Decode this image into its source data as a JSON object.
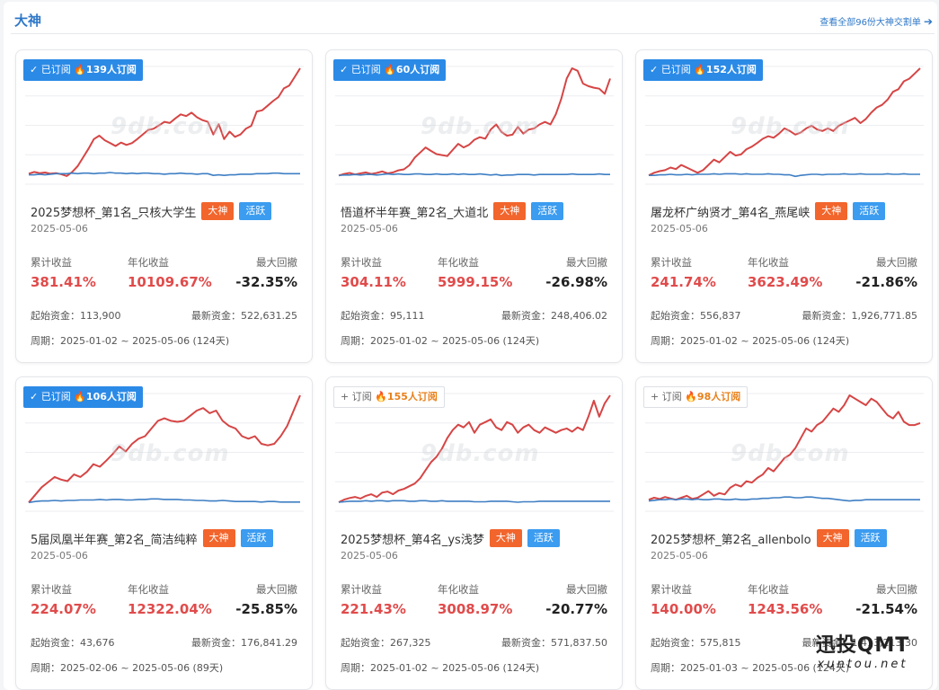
{
  "header": {
    "title": "大神",
    "view_all": "查看全部96份大神交割单"
  },
  "watermark_text": "9db.com",
  "labels": {
    "cum_return": "累计收益",
    "annual_return": "年化收益",
    "max_drawdown": "最大回撤",
    "start_fund": "起始资金：",
    "latest_fund": "最新资金：",
    "period": "周期："
  },
  "colors": {
    "accent": "#2b8ae6",
    "profit_line": "#d64545",
    "benchmark_line": "#3f7fc4",
    "tag_hot": "#f2652c",
    "tag_active": "#3b9cf0"
  },
  "cards": [
    {
      "subscribed": true,
      "sub_label": "✓ 已订阅",
      "sub_count": "139人订阅",
      "title": "2025梦想杯_第1名_只核大学生",
      "tag_hot": "大神",
      "tag_active": "活跃",
      "date": "2025-05-06",
      "cum_return": "381.41%",
      "annual_return": "10109.67%",
      "max_drawdown": "-32.35%",
      "start_fund": "113,900",
      "latest_fund": "522,631.25",
      "period": "2025-01-02 ~ 2025-05-06 (124天)",
      "chart_data": {
        "type": "line",
        "series": [
          {
            "role": "strategy",
            "values": [
              0.02,
              0.05,
              0.03,
              0.04,
              0.02,
              0.03,
              0.01,
              -0.02,
              0.05,
              0.15,
              0.3,
              0.45,
              0.62,
              0.68,
              0.6,
              0.55,
              0.5,
              0.56,
              0.52,
              0.55,
              0.62,
              0.7,
              0.78,
              0.8,
              0.86,
              0.92,
              0.9,
              0.98,
              1.05,
              1.02,
              1.08,
              1.0,
              0.95,
              0.92,
              0.7,
              0.88,
              0.62,
              0.75,
              0.66,
              0.7,
              0.8,
              0.85,
              1.1,
              1.12,
              1.2,
              1.28,
              1.35,
              1.5,
              1.55,
              1.7,
              1.85
            ]
          },
          {
            "role": "benchmark",
            "values": [
              0.0,
              0.0,
              0.01,
              0.0,
              0.01,
              0.02,
              0.02,
              0.02,
              0.03,
              0.02,
              0.03,
              0.03,
              0.02,
              0.03,
              0.03,
              0.04,
              0.03,
              0.03,
              0.02,
              0.03,
              0.02,
              0.03,
              0.03,
              0.02,
              0.02,
              0.01,
              0.02,
              0.02,
              0.03,
              0.02,
              0.02,
              0.01,
              0.02,
              0.02,
              -0.01,
              0.0,
              -0.01,
              0.0,
              0.0,
              0.01,
              0.01,
              0.01,
              0.02,
              0.02,
              0.02,
              0.03,
              0.03,
              0.02,
              0.02,
              0.02,
              0.02
            ]
          }
        ]
      }
    },
    {
      "subscribed": true,
      "sub_label": "✓ 已订阅",
      "sub_count": "60人订阅",
      "title": "悟道杯半年赛_第2名_大道北",
      "tag_hot": "大神",
      "tag_active": "活跃",
      "date": "2025-05-06",
      "cum_return": "304.11%",
      "annual_return": "5999.15%",
      "max_drawdown": "-26.98%",
      "start_fund": "95,111",
      "latest_fund": "248,406.02",
      "period": "2025-01-02 ~ 2025-05-06 (124天)",
      "chart_data": {
        "type": "line",
        "series": [
          {
            "role": "strategy",
            "values": [
              0.0,
              0.03,
              0.05,
              0.02,
              0.04,
              0.06,
              0.03,
              0.05,
              0.08,
              0.04,
              0.06,
              0.1,
              0.12,
              0.2,
              0.35,
              0.45,
              0.55,
              0.48,
              0.42,
              0.4,
              0.38,
              0.5,
              0.62,
              0.55,
              0.6,
              0.7,
              0.75,
              0.72,
              0.9,
              1.0,
              0.85,
              0.78,
              0.8,
              0.95,
              0.82,
              0.9,
              0.92,
              1.0,
              1.05,
              1.0,
              1.2,
              1.5,
              1.9,
              2.1,
              2.05,
              1.8,
              1.75,
              1.72,
              1.7,
              1.6,
              1.9
            ]
          },
          {
            "role": "benchmark",
            "values": [
              0.0,
              0.01,
              0.01,
              0.02,
              0.01,
              0.02,
              0.02,
              0.01,
              0.02,
              0.03,
              0.02,
              0.03,
              0.02,
              0.02,
              0.03,
              0.03,
              0.02,
              0.02,
              0.03,
              0.02,
              0.02,
              0.03,
              0.02,
              0.03,
              0.02,
              0.02,
              0.03,
              0.02,
              0.01,
              0.02,
              0.0,
              0.01,
              0.01,
              0.02,
              0.02,
              0.02,
              0.01,
              0.02,
              0.02,
              0.02,
              0.02,
              0.02,
              0.02,
              0.03,
              0.02,
              0.02,
              0.02,
              0.02,
              0.03,
              0.02,
              0.02
            ]
          }
        ]
      }
    },
    {
      "subscribed": true,
      "sub_label": "✓ 已订阅",
      "sub_count": "152人订阅",
      "title": "屠龙杯广纳贤才_第4名_燕尾峡",
      "tag_hot": "大神",
      "tag_active": "活跃",
      "date": "2025-05-06",
      "cum_return": "241.74%",
      "annual_return": "3623.49%",
      "max_drawdown": "-21.86%",
      "start_fund": "556,837",
      "latest_fund": "1,926,771.85",
      "period": "2025-01-02 ~ 2025-05-06 (124天)",
      "chart_data": {
        "type": "line",
        "series": [
          {
            "role": "strategy",
            "values": [
              0.0,
              0.05,
              0.08,
              0.1,
              0.15,
              0.12,
              0.2,
              0.15,
              0.1,
              0.05,
              0.1,
              0.2,
              0.3,
              0.25,
              0.35,
              0.45,
              0.38,
              0.4,
              0.5,
              0.55,
              0.62,
              0.7,
              0.75,
              0.72,
              0.8,
              0.9,
              0.85,
              0.78,
              0.82,
              0.9,
              0.95,
              0.88,
              0.85,
              0.9,
              0.85,
              0.95,
              1.0,
              1.05,
              1.1,
              1.0,
              1.08,
              1.2,
              1.3,
              1.35,
              1.45,
              1.6,
              1.65,
              1.8,
              1.85,
              1.95,
              2.05
            ]
          },
          {
            "role": "benchmark",
            "values": [
              0.0,
              0.0,
              0.01,
              0.01,
              0.02,
              0.01,
              0.01,
              0.02,
              0.01,
              0.02,
              0.02,
              0.02,
              0.03,
              0.02,
              0.03,
              0.03,
              0.03,
              0.02,
              0.03,
              0.02,
              0.02,
              0.02,
              0.03,
              0.02,
              0.02,
              0.01,
              0.01,
              -0.02,
              0.0,
              0.01,
              0.02,
              0.02,
              0.01,
              0.02,
              0.02,
              0.02,
              0.03,
              0.02,
              0.02,
              0.03,
              0.02,
              0.02,
              0.02,
              0.02,
              0.03,
              0.02,
              0.02,
              0.03,
              0.02,
              0.02,
              0.02
            ]
          }
        ]
      }
    },
    {
      "subscribed": true,
      "sub_label": "✓ 已订阅",
      "sub_count": "106人订阅",
      "title": "5届凤凰半年赛_第2名_简洁纯粹",
      "tag_hot": "大神",
      "tag_active": "活跃",
      "date": "2025-05-06",
      "cum_return": "224.07%",
      "annual_return": "12322.04%",
      "max_drawdown": "-25.85%",
      "start_fund": "43,676",
      "latest_fund": "176,841.29",
      "period": "2025-02-06 ~ 2025-05-06 (89天)",
      "chart_data": {
        "type": "line",
        "series": [
          {
            "role": "strategy",
            "values": [
              0.0,
              0.15,
              0.3,
              0.4,
              0.5,
              0.45,
              0.42,
              0.55,
              0.5,
              0.6,
              0.75,
              0.7,
              0.82,
              0.95,
              1.1,
              1.0,
              1.15,
              1.25,
              1.3,
              1.45,
              1.6,
              1.65,
              1.6,
              1.58,
              1.6,
              1.7,
              1.8,
              1.85,
              1.75,
              1.8,
              1.6,
              1.5,
              1.45,
              1.3,
              1.25,
              1.3,
              1.15,
              1.12,
              1.15,
              1.3,
              1.5,
              1.8,
              2.1
            ]
          },
          {
            "role": "benchmark",
            "values": [
              0.0,
              0.02,
              0.03,
              0.03,
              0.04,
              0.03,
              0.04,
              0.04,
              0.05,
              0.05,
              0.05,
              0.06,
              0.05,
              0.06,
              0.06,
              0.05,
              0.05,
              0.06,
              0.06,
              0.07,
              0.07,
              0.06,
              0.06,
              0.06,
              0.05,
              0.05,
              0.04,
              0.04,
              0.03,
              0.03,
              0.04,
              0.03,
              0.02,
              0.02,
              0.02,
              0.02,
              0.01,
              0.02,
              0.02,
              0.01,
              0.01,
              0.01,
              0.01
            ]
          }
        ]
      }
    },
    {
      "subscribed": false,
      "sub_label": "+ 订阅",
      "sub_count": "155人订阅",
      "title": "2025梦想杯_第4名_ys浅梦",
      "tag_hot": "大神",
      "tag_active": "活跃",
      "date": "2025-05-06",
      "cum_return": "221.43%",
      "annual_return": "3008.97%",
      "max_drawdown": "-20.77%",
      "start_fund": "267,325",
      "latest_fund": "571,837.50",
      "period": "2025-01-02 ~ 2025-05-06 (124天)",
      "chart_data": {
        "type": "line",
        "series": [
          {
            "role": "strategy",
            "values": [
              0.0,
              0.05,
              0.08,
              0.1,
              0.07,
              0.12,
              0.15,
              0.1,
              0.18,
              0.2,
              0.15,
              0.22,
              0.25,
              0.3,
              0.35,
              0.45,
              0.6,
              0.75,
              0.85,
              1.0,
              1.2,
              1.35,
              1.45,
              1.4,
              1.5,
              1.3,
              1.45,
              1.5,
              1.55,
              1.4,
              1.35,
              1.5,
              1.45,
              1.3,
              1.4,
              1.45,
              1.35,
              1.3,
              1.4,
              1.35,
              1.3,
              1.35,
              1.38,
              1.32,
              1.4,
              1.35,
              1.6,
              1.9,
              1.6,
              1.85,
              2.0
            ]
          },
          {
            "role": "benchmark",
            "values": [
              0.0,
              0.01,
              0.02,
              0.02,
              0.02,
              0.03,
              0.02,
              0.03,
              0.03,
              0.02,
              0.03,
              0.03,
              0.03,
              0.02,
              0.02,
              0.03,
              0.03,
              0.02,
              0.02,
              0.03,
              0.02,
              0.02,
              0.02,
              0.02,
              0.02,
              0.01,
              0.01,
              0.01,
              0.02,
              0.02,
              0.02,
              0.02,
              0.01,
              0.0,
              0.01,
              0.01,
              0.01,
              0.02,
              0.02,
              0.02,
              0.02,
              0.02,
              0.02,
              0.02,
              0.02,
              0.02,
              0.02,
              0.02,
              0.02,
              0.02,
              0.02
            ]
          }
        ]
      }
    },
    {
      "subscribed": false,
      "sub_label": "+ 订阅",
      "sub_count": "98人订阅",
      "title": "2025梦想杯_第2名_allenbolo",
      "tag_hot": "大神",
      "tag_active": "活跃",
      "date": "2025-05-06",
      "cum_return": "140.00%",
      "annual_return": "1243.56%",
      "max_drawdown": "-21.54%",
      "start_fund": "575,815",
      "latest_fund": "1,413,213.30",
      "period": "2025-01-03 ~ 2025-05-06 (124天)",
      "chart_data": {
        "type": "line",
        "series": [
          {
            "role": "strategy",
            "values": [
              0.02,
              0.05,
              0.03,
              0.06,
              0.04,
              0.02,
              0.05,
              0.08,
              0.03,
              0.05,
              0.1,
              0.15,
              0.08,
              0.12,
              0.1,
              0.2,
              0.25,
              0.22,
              0.3,
              0.28,
              0.35,
              0.4,
              0.5,
              0.45,
              0.55,
              0.65,
              0.7,
              0.8,
              0.95,
              1.1,
              1.05,
              1.15,
              1.2,
              1.3,
              1.4,
              1.35,
              1.45,
              1.6,
              1.55,
              1.5,
              1.45,
              1.55,
              1.5,
              1.4,
              1.3,
              1.25,
              1.35,
              1.2,
              1.15,
              1.15,
              1.18
            ]
          },
          {
            "role": "benchmark",
            "values": [
              0.0,
              0.01,
              0.02,
              0.02,
              0.03,
              0.02,
              0.03,
              0.03,
              0.02,
              0.03,
              0.02,
              0.02,
              0.03,
              0.03,
              0.02,
              0.02,
              0.03,
              0.02,
              0.02,
              0.03,
              0.03,
              0.04,
              0.04,
              0.05,
              0.05,
              0.06,
              0.06,
              0.05,
              0.05,
              0.06,
              0.06,
              0.05,
              0.04,
              0.04,
              0.03,
              0.02,
              0.01,
              0.0,
              0.01,
              0.01,
              0.02,
              0.02,
              0.02,
              0.02,
              0.02,
              0.02,
              0.02,
              0.02,
              0.02,
              0.02,
              0.02
            ]
          }
        ]
      }
    }
  ],
  "corner_watermark": {
    "big": "迅投QMT",
    "small": "xuntou.net"
  }
}
